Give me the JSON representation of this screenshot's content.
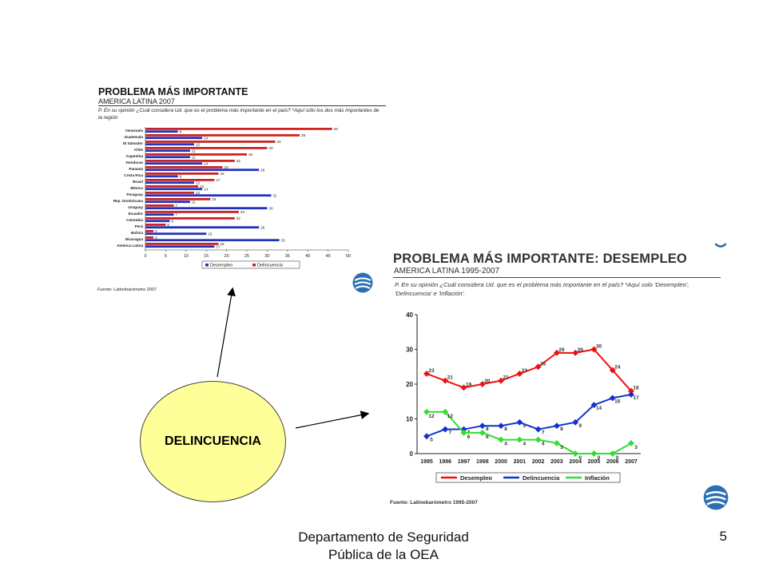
{
  "bar_chart": {
    "title": "PROBLEMA MÁS IMPORTANTE",
    "subtitle": "AMERICA LATINA 2007",
    "question": "P. En su opinión ¿Cuál considera Ud. que es el problema más importante en el país? *Aquí sólo los dos más importantes de la región",
    "source": "Fuente: Latinobarómetro 2007"
  },
  "line_chart": {
    "title": "PROBLEMA MÁS IMPORTANTE: DESEMPLEO",
    "subtitle": "AMERICA LATINA 1995-2007",
    "question": "P. En su opinión ¿Cuál considera Ud. que es el problema más importante en el país? *Aquí solo 'Desempleo', 'Delincuencia' e 'Inflación'.",
    "source": "Fuente: Latinobarómetro 1995-2007"
  },
  "chart_data": [
    {
      "type": "bar",
      "orientation": "horizontal",
      "title": "PROBLEMA MÁS IMPORTANTE",
      "subtitle": "AMERICA LATINA 2007",
      "categories": [
        "Venezuela",
        "Guatemala",
        "El Salvador",
        "Chile",
        "Argentina",
        "Honduras",
        "Panamá",
        "Costa Rica",
        "Brasil",
        "México",
        "Paraguay",
        "Rep. Dominicana",
        "Uruguay",
        "Ecuador",
        "Colombia",
        "Perú",
        "Bolivia",
        "Nicaragua",
        "América Latina"
      ],
      "series": [
        {
          "name": "Desempleo",
          "color": "#2233bb",
          "values": [
            8,
            14,
            12,
            11,
            11,
            14,
            28,
            8,
            12,
            14,
            31,
            11,
            30,
            7,
            6,
            28,
            15,
            33,
            17
          ]
        },
        {
          "name": "Delincuencia",
          "color": "#cc2222",
          "values": [
            46,
            38,
            32,
            30,
            25,
            22,
            19,
            18,
            17,
            13,
            12,
            16,
            7,
            23,
            22,
            5,
            2,
            2,
            18
          ]
        }
      ],
      "xlim": [
        0,
        50
      ],
      "xticks": [
        0,
        5,
        10,
        15,
        20,
        25,
        30,
        35,
        40,
        45,
        50
      ],
      "legend_position": "bottom"
    },
    {
      "type": "line",
      "title": "PROBLEMA MÁS IMPORTANTE: DESEMPLEO",
      "subtitle": "AMERICA LATINA 1995-2007",
      "x": [
        "1995",
        "1996",
        "1997",
        "1998",
        "2000",
        "2001",
        "2002",
        "2003",
        "2004",
        "2005",
        "2006",
        "2007"
      ],
      "series": [
        {
          "name": "Desempleo",
          "color": "#ee1111",
          "values": [
            23,
            21,
            19,
            20,
            21,
            23,
            25,
            29,
            29,
            30,
            24,
            18
          ]
        },
        {
          "name": "Delincuencia",
          "color": "#1133cc",
          "values": [
            5,
            7,
            7,
            8,
            8,
            9,
            7,
            8,
            9,
            14,
            16,
            17
          ]
        },
        {
          "name": "Inflación",
          "color": "#33dd33",
          "values": [
            12,
            12,
            6,
            6,
            4,
            4,
            4,
            3,
            0,
            0,
            0,
            3
          ]
        }
      ],
      "ylim": [
        0,
        40
      ],
      "yticks": [
        0,
        10,
        20,
        30,
        40
      ],
      "legend_position": "bottom"
    }
  ],
  "oval_label": "DELINCUENCIA",
  "footer": {
    "line1": "Departamento de Seguridad",
    "line2": "Pública de la OEA"
  },
  "page_number": "5",
  "icons": {
    "logo": "latinobarometro-logo-icon"
  }
}
